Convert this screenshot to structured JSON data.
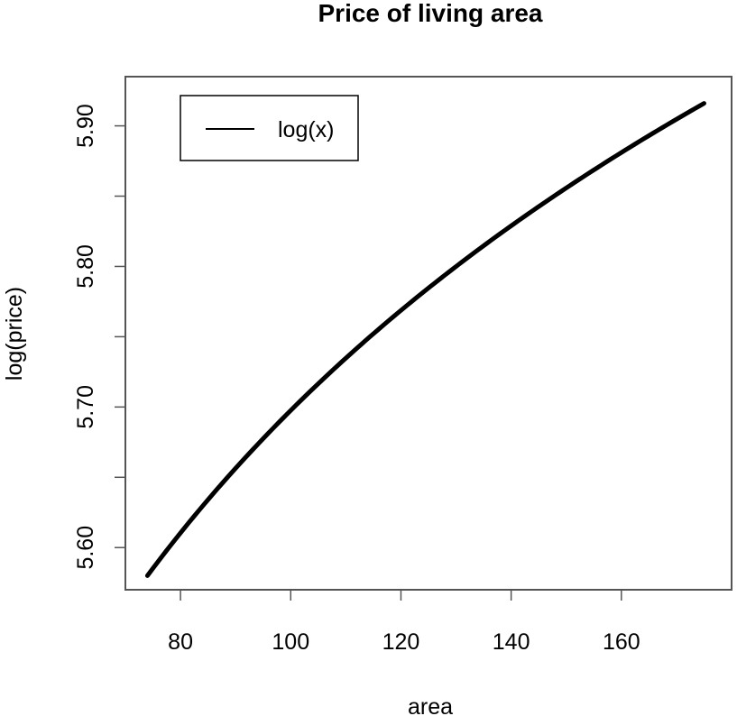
{
  "chart_data": {
    "type": "line",
    "title": "Price of living area",
    "xlabel": "area",
    "ylabel": "log(price)",
    "xlim": [
      70,
      180
    ],
    "ylim": [
      5.57,
      5.935
    ],
    "x_ticks": [
      80,
      100,
      120,
      140,
      160
    ],
    "x_tick_labels": [
      "80",
      "100",
      "120",
      "140",
      "160"
    ],
    "y_ticks": [
      5.6,
      5.65,
      5.7,
      5.75,
      5.8,
      5.85,
      5.9
    ],
    "y_tick_labels": [
      "5.60",
      "",
      "5.70",
      "",
      "5.80",
      "",
      "5.90"
    ],
    "grid": false,
    "legend": {
      "position": "top-left",
      "entries": [
        "log(x)"
      ]
    },
    "series": [
      {
        "name": "log(x)",
        "color": "#000000",
        "x": [
          74,
          80,
          90,
          100,
          110,
          120,
          130,
          140,
          150,
          160,
          170,
          175
        ],
        "y": [
          5.58,
          5.612,
          5.661,
          5.704,
          5.737,
          5.768,
          5.797,
          5.826,
          5.853,
          5.878,
          5.903,
          5.916
        ]
      }
    ]
  }
}
